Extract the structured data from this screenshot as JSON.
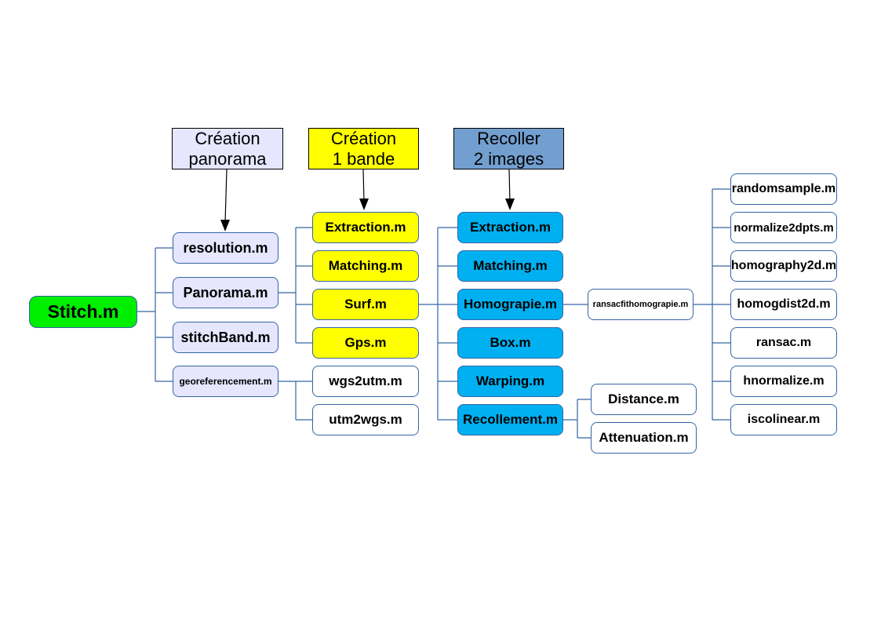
{
  "headers": {
    "creation_panorama": "Création\npanorama",
    "creation_bande": "Création\n1 bande",
    "recoller": "Recoller\n2 images"
  },
  "colors": {
    "root": "#00ee00",
    "level1": "#e6e6ff",
    "surf_children": "#ffff00",
    "recoller_children": "#00b0f0",
    "header_recoller": "#729fcf",
    "connector": "#3465a4"
  },
  "nodes": {
    "stitch": "Stitch.m",
    "resolution": "resolution.m",
    "panorama": "Panorama.m",
    "stitchband": "stitchBand.m",
    "georeferencement": "georeferencement.m",
    "extraction_y": "Extraction.m",
    "matching_y": "Matching.m",
    "surf": "Surf.m",
    "gps": "Gps.m",
    "wgs2utm": "wgs2utm.m",
    "utm2wgs": "utm2wgs.m",
    "extraction_b": "Extraction.m",
    "matching_b": "Matching.m",
    "homograpie": "Homograpie.m",
    "box": "Box.m",
    "warping": "Warping.m",
    "recollement": "Recollement.m",
    "distance": "Distance.m",
    "attenuation": "Attenuation.m",
    "ransacfit": "ransacfithomograpie.m",
    "randomsample": "randomsample.m",
    "normalize2dpts": "normalize2dpts.m",
    "homography2d": "homography2d.m",
    "homogdist2d": "homogdist2d.m",
    "ransac": "ransac.m",
    "hnormalize": "hnormalize.m",
    "iscolinear": "iscolinear.m"
  }
}
